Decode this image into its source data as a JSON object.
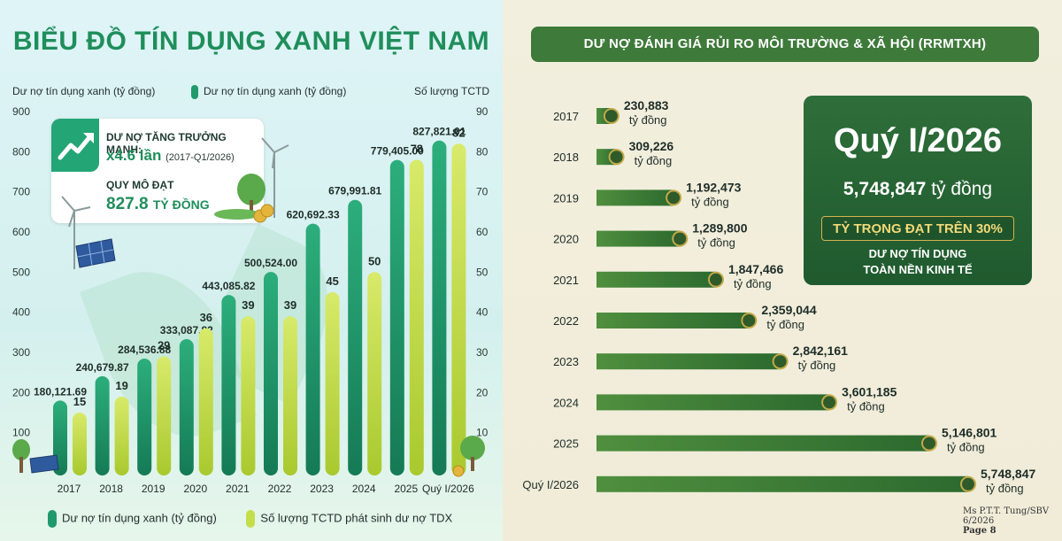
{
  "left": {
    "title": "BIỂU ĐỒ TÍN DỤNG XANH VIỆT NAM",
    "y_left_label": "Dư nợ tín dụng xanh (tỷ đồng)",
    "y_right_label": "Số lượng TCTD",
    "legend_top": "Dư nợ tín dụng xanh (tỷ đồng)",
    "legend_bottom_1": "Dư nợ tín dụng xanh (tỷ đồng)",
    "legend_bottom_2": "Số lượng TCTD phát sinh dư nợ TDX",
    "info": {
      "line1": "DƯ NỢ TĂNG TRƯỞNG MẠNH:",
      "line2_main": "x4.6 lần",
      "line2_sub": "(2017-Q1/2026)",
      "line3": "QUY MÔ ĐẠT",
      "line4_main": "827.8",
      "line4_unit": "TỶ ĐỒNG"
    },
    "colors": {
      "credit_bar": "#1f9a6c",
      "count_bar": "#c4dd4a"
    }
  },
  "right": {
    "title": "DƯ NỢ ĐÁNH GIÁ RỦI RO MÔI TRƯỜNG & XÃ HỘI (RRMTXH)",
    "unit": "tỷ đồng",
    "box": {
      "period": "Quý I/2026",
      "value": "5,748,847",
      "unit": "tỷ đồng",
      "share": "TỶ TRỌNG ĐẠT TRÊN 30%",
      "desc_1": "DƯ NỢ TÍN DỤNG",
      "desc_2": "TOÀN NỀN KINH TẾ"
    },
    "footer": {
      "line1": "Ms P.T.T. Tung/SBV",
      "line2": "6/2026",
      "line3": "Page 8"
    }
  },
  "chart_data": [
    {
      "type": "bar",
      "title": "BIỂU ĐỒ TÍN DỤNG XANH VIỆT NAM",
      "categories": [
        "2017",
        "2018",
        "2019",
        "2020",
        "2021",
        "2022",
        "2023",
        "2024",
        "2025",
        "Quý I/2026"
      ],
      "series": [
        {
          "name": "Dư nợ tín dụng xanh (tỷ đồng)",
          "axis": "left",
          "values": [
            180121.69,
            240679.87,
            284536.88,
            333087.82,
            443085.82,
            500524.0,
            620692.33,
            679991.81,
            779405.0,
            827821.01
          ],
          "labels": [
            "180,121.69",
            "240,679.87",
            "284,536.88",
            "333,087.82",
            "443,085.82",
            "500,524.00",
            "620,692.33",
            "679,991.81",
            "779,405.00",
            "827,821.01"
          ]
        },
        {
          "name": "Số lượng TCTD phát sinh dư nợ TDX",
          "axis": "right",
          "values": [
            15,
            19,
            29,
            36,
            39,
            39,
            45,
            50,
            78,
            82
          ],
          "labels": [
            "15",
            "19",
            "29",
            "36",
            "39",
            "39",
            "45",
            "50",
            "78",
            "82"
          ]
        }
      ],
      "y_left": {
        "label": "Dư nợ tín dụng xanh (tỷ đồng)",
        "ticks": [
          "100",
          "200",
          "300",
          "400",
          "500",
          "600",
          "700",
          "800",
          "900"
        ]
      },
      "y_right": {
        "label": "Số lượng TCTD",
        "ticks": [
          "10",
          "20",
          "30",
          "40",
          "50",
          "60",
          "70",
          "80",
          "90"
        ]
      },
      "legend": "bottom"
    },
    {
      "type": "bar",
      "orientation": "horizontal",
      "title": "DƯ NỢ ĐÁNH GIÁ RỦI RO MÔI TRƯỜNG & XÃ HỘI (RRMTXH)",
      "categories": [
        "2017",
        "2018",
        "2019",
        "2020",
        "2021",
        "2022",
        "2023",
        "2024",
        "2025",
        "Quý I/2026"
      ],
      "values": [
        230883,
        309226,
        1192473,
        1289800,
        1847466,
        2359044,
        2842161,
        3601185,
        5146801,
        5748847
      ],
      "labels": [
        "230,883",
        "309,226",
        "1,192,473",
        "1,289,800",
        "1,847,466",
        "2,359,044",
        "2,842,161",
        "3,601,185",
        "5,146,801",
        "5,748,847"
      ],
      "unit": "tỷ đồng"
    }
  ]
}
